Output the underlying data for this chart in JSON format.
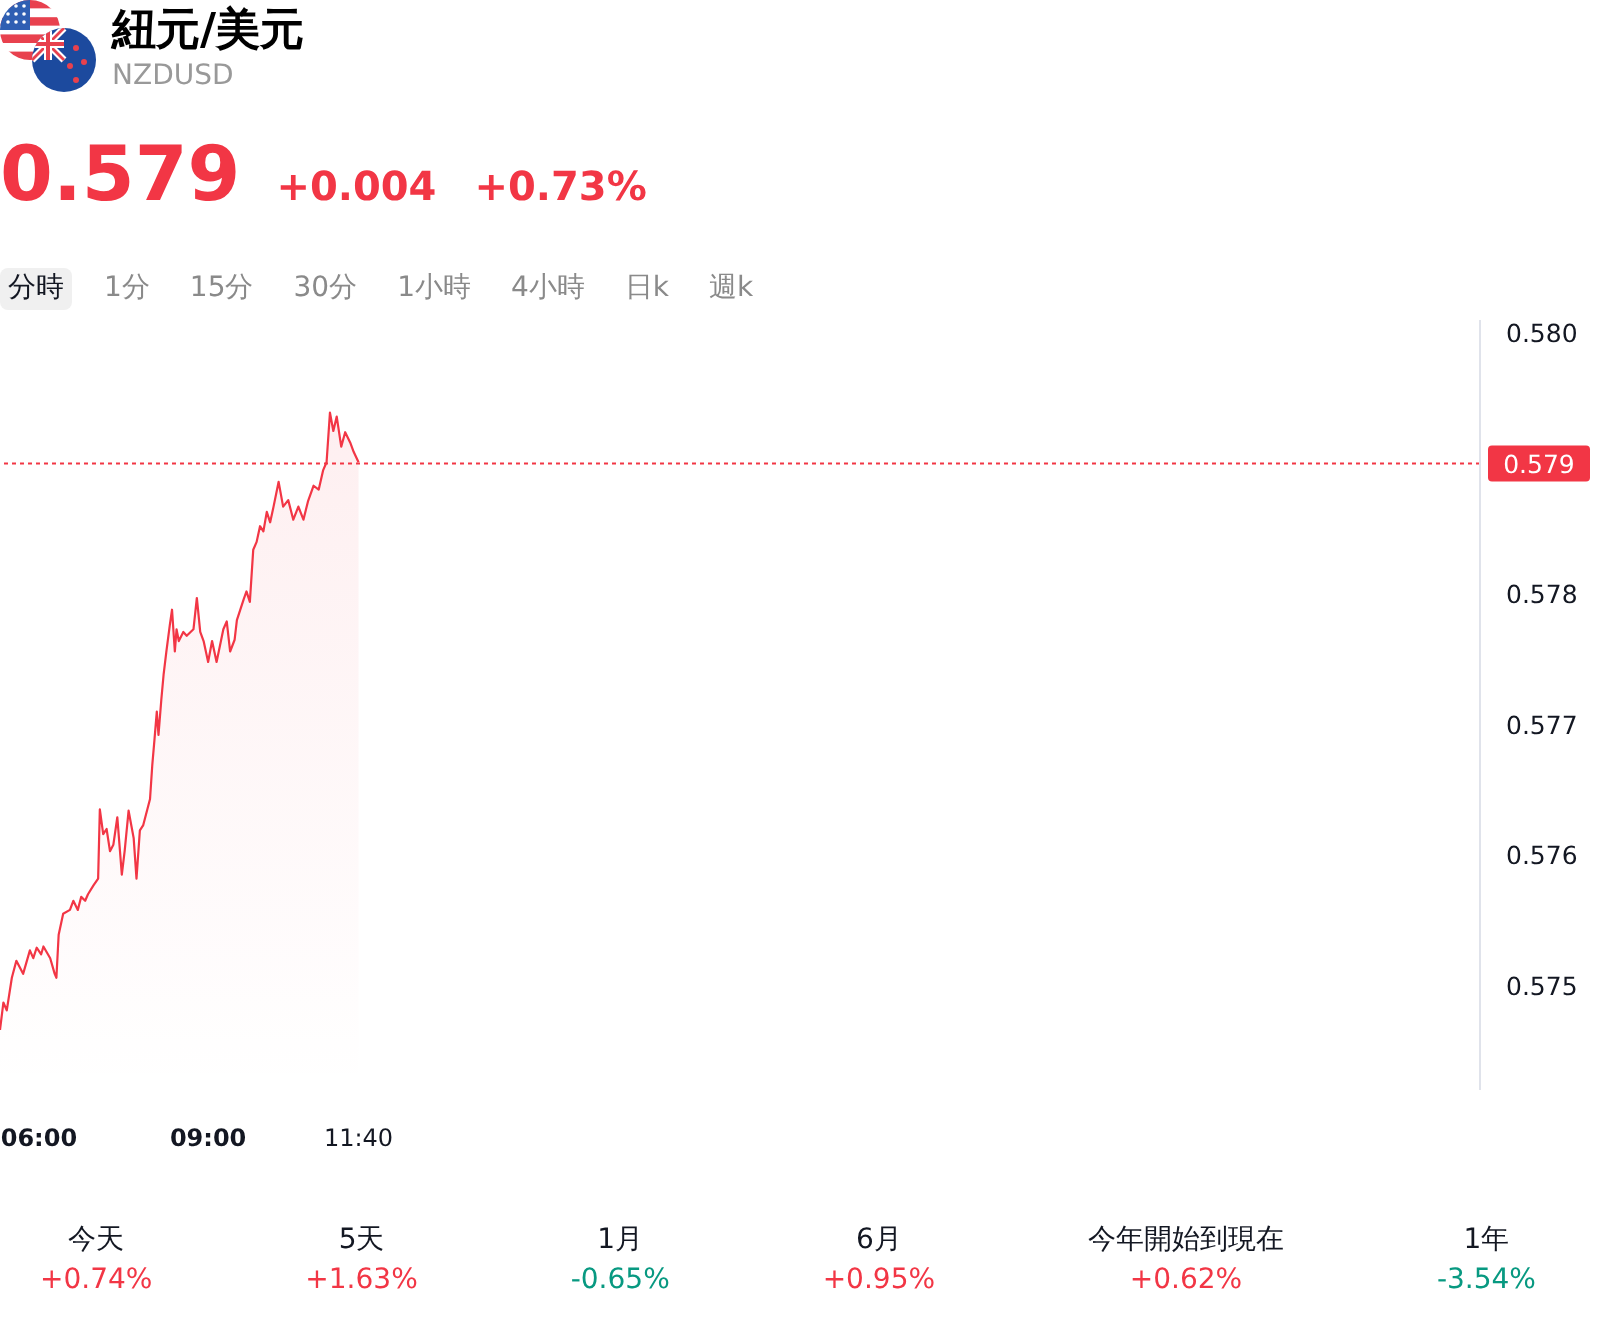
{
  "chart_data": {
    "type": "area",
    "title": "紐元/美元",
    "subtitle": "NZDUSD",
    "x": [
      5.31,
      5.37,
      5.43,
      5.52,
      5.6,
      5.72,
      5.84,
      5.9,
      5.96,
      6.04,
      6.08,
      6.2,
      6.28,
      6.31,
      6.35,
      6.43,
      6.55,
      6.61,
      6.69,
      6.75,
      6.82,
      6.87,
      6.97,
      7.05,
      7.08,
      7.14,
      7.2,
      7.26,
      7.32,
      7.39,
      7.47,
      7.52,
      7.59,
      7.68,
      7.73,
      7.79,
      7.85,
      7.97,
      8.01,
      8.05,
      8.09,
      8.12,
      8.17,
      8.21,
      8.26,
      8.32,
      8.36,
      8.41,
      8.44,
      8.48,
      8.56,
      8.62,
      8.74,
      8.8,
      8.86,
      8.92,
      9,
      9.07,
      9.15,
      9.27,
      9.33,
      9.39,
      9.47,
      9.51,
      9.63,
      9.68,
      9.74,
      9.8,
      9.86,
      9.92,
      9.98,
      10.04,
      10.1,
      10.16,
      10.25,
      10.33,
      10.42,
      10.51,
      10.6,
      10.69,
      10.77,
      10.87,
      10.96,
      11.04,
      11.1,
      11.16,
      11.22,
      11.28,
      11.36,
      11.43,
      11.52,
      11.58,
      11.667
    ],
    "values": [
      0.57466,
      0.57487,
      0.57481,
      0.57506,
      0.57519,
      0.57509,
      0.57527,
      0.57521,
      0.57529,
      0.57524,
      0.5753,
      0.57521,
      0.57509,
      0.57506,
      0.57539,
      0.57555,
      0.57558,
      0.57565,
      0.57558,
      0.57568,
      0.57565,
      0.5757,
      0.57577,
      0.57582,
      0.57635,
      0.57616,
      0.5762,
      0.57603,
      0.57608,
      0.57629,
      0.57585,
      0.57603,
      0.57634,
      0.57613,
      0.57582,
      0.57619,
      0.57623,
      0.57643,
      0.57669,
      0.57689,
      0.5771,
      0.57692,
      0.57719,
      0.57738,
      0.57756,
      0.57776,
      0.57788,
      0.57756,
      0.57773,
      0.57764,
      0.57771,
      0.57768,
      0.57773,
      0.57797,
      0.57771,
      0.57764,
      0.57748,
      0.57764,
      0.57748,
      0.57773,
      0.57779,
      0.57756,
      0.57765,
      0.5778,
      0.57796,
      0.57802,
      0.57794,
      0.57834,
      0.5784,
      0.57852,
      0.57848,
      0.57863,
      0.57855,
      0.57867,
      0.57886,
      0.57867,
      0.57872,
      0.57857,
      0.57867,
      0.57857,
      0.57871,
      0.57883,
      0.5788,
      0.57895,
      0.57901,
      0.57939,
      0.57925,
      0.57936,
      0.57913,
      0.57924,
      0.57916,
      0.57909,
      0.57901
    ],
    "color": "#f23645",
    "xlim": [
      5.31,
      31.55
    ],
    "xticks": [
      {
        "value": 6,
        "label": "06:00"
      },
      {
        "value": 9,
        "label": "09:00"
      },
      {
        "value": 11.667,
        "label": "11:40"
      }
    ],
    "ylim": [
      0.5742,
      0.5801
    ],
    "yticks": [
      0.575,
      0.576,
      0.577,
      0.578,
      {
        "value": 0.58,
        "label": "0.580"
      }
    ],
    "ref_lines": [
      {
        "axis": "y",
        "value": 0.579,
        "label": "0.579",
        "color": "#f23645",
        "line_style": "dotted"
      }
    ],
    "annotations": [
      "0.579",
      "+0.004",
      "+0.73%",
      "分時",
      "1分",
      "15分",
      "30分",
      "1小時",
      "4小時",
      "日k",
      "週k",
      "今天",
      "+0.74%",
      "5天",
      "+1.63%",
      "1月",
      "-0.65%",
      "6月",
      "+0.95%",
      "今年開始到現在",
      "+0.62%",
      "1年",
      "-3.54%"
    ]
  }
}
